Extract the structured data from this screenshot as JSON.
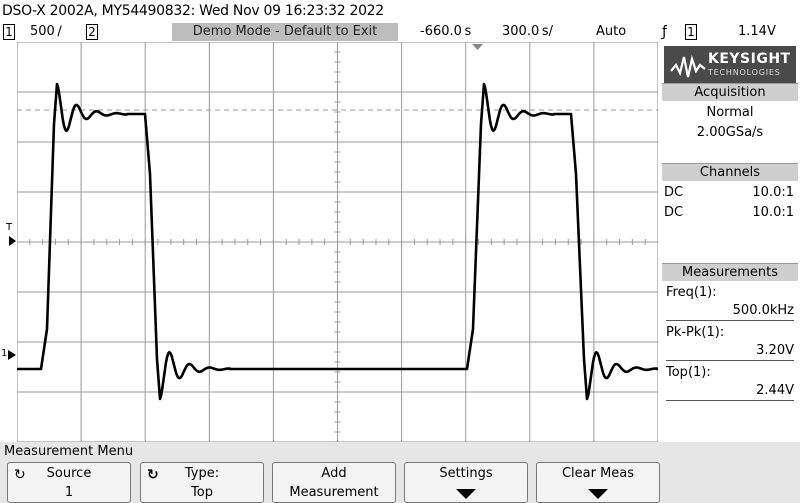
{
  "title_bar": "DSO-X 2002A, MY54490832: Wed Nov 09 16:23:32 2022",
  "status": {
    "ch1_num": "1",
    "ch1_scale": "500 ∕",
    "ch2_num": "2",
    "mode": "Demo Mode - Default to Exit",
    "time_offset": "-660.0 s",
    "time_scale": "300.0 s/",
    "trigger_mode": "Auto",
    "trigger_edge_icon": "rising-edge-icon",
    "trigger_source": "1",
    "trigger_level": "1.14V"
  },
  "panel": {
    "logo_brand": "KEYSIGHT",
    "logo_sub": "TECHNOLOGIES",
    "acquisition": {
      "header": "Acquisition",
      "mode": "Normal",
      "rate": "2.00GSa/s"
    },
    "channels": {
      "header": "Channels",
      "rows": [
        {
          "coupling": "DC",
          "probe": "10.0:1"
        },
        {
          "coupling": "DC",
          "probe": "10.0:1"
        }
      ]
    },
    "measurements": {
      "header": "Measurements",
      "items": [
        {
          "label": "Freq(1):",
          "value": "500.0kHz"
        },
        {
          "label": "Pk-Pk(1):",
          "value": "3.20V"
        },
        {
          "label": "Top(1):",
          "value": "2.44V"
        }
      ]
    }
  },
  "screen": {
    "trigger_marker": "T",
    "ground_marker": "1"
  },
  "menu": {
    "title": "Measurement Menu",
    "softkeys": [
      {
        "line1": "Source",
        "line2": "1",
        "icon": "rotate-knob-icon"
      },
      {
        "line1": "Type:",
        "line2": "Top",
        "icon": "rotate-knob-icon"
      },
      {
        "line1": "Add",
        "line2": "Measurement"
      },
      {
        "line1": "Settings",
        "line2": ""
      },
      {
        "line1": "Clear Meas",
        "line2": ""
      }
    ]
  },
  "colors": {
    "trace": "#000000",
    "grid": "#9a9a9a",
    "panel_header": "#cfcfcf",
    "demo_bar": "#bdbdbd",
    "logo_bg": "#4a4a4a"
  }
}
